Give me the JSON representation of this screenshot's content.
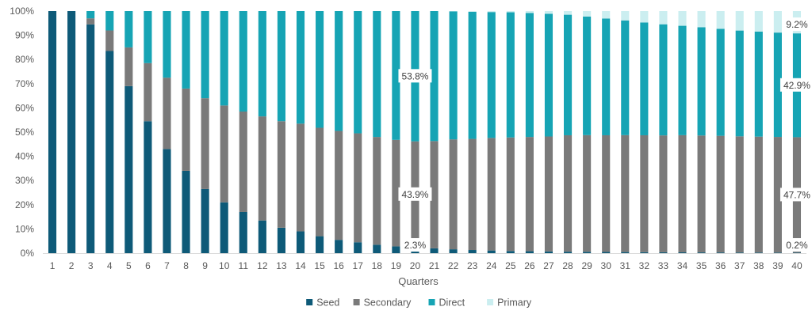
{
  "chart_data": {
    "type": "bar",
    "stacked": "percent",
    "categories": [
      "1",
      "2",
      "3",
      "4",
      "5",
      "6",
      "7",
      "8",
      "9",
      "10",
      "11",
      "12",
      "13",
      "14",
      "15",
      "16",
      "17",
      "18",
      "19",
      "20",
      "21",
      "22",
      "23",
      "24",
      "25",
      "26",
      "27",
      "28",
      "29",
      "30",
      "31",
      "32",
      "33",
      "34",
      "35",
      "36",
      "37",
      "38",
      "39",
      "40"
    ],
    "xlabel": "Quarters",
    "ylabel": "",
    "ylim": [
      0,
      100
    ],
    "y_ticks": [
      "0%",
      "10%",
      "20%",
      "30%",
      "40%",
      "50%",
      "60%",
      "70%",
      "80%",
      "90%",
      "100%"
    ],
    "grid": false,
    "legend_position": "bottom",
    "series": [
      {
        "name": "Seed",
        "color": "#0e5a78",
        "values": [
          100,
          100,
          94.5,
          83.5,
          69,
          54.5,
          43,
          34,
          26.5,
          21,
          17,
          13.5,
          10.5,
          9,
          7,
          5.5,
          4.5,
          3.5,
          2.8,
          2.3,
          2,
          1.6,
          1.3,
          1.1,
          0.9,
          0.8,
          0.7,
          0.6,
          0.55,
          0.5,
          0.45,
          0.4,
          0.35,
          0.33,
          0.3,
          0.28,
          0.26,
          0.24,
          0.22,
          0.2
        ]
      },
      {
        "name": "Secondary",
        "color": "#7a7a7a",
        "values": [
          0,
          0,
          2.5,
          8.5,
          16,
          24,
          29.5,
          34,
          37.5,
          40,
          41.5,
          43,
          44,
          44.5,
          44.8,
          45,
          45,
          44.5,
          44,
          43.9,
          44.3,
          45.4,
          45.9,
          46.5,
          46.9,
          47.2,
          47.5,
          48.1,
          48.2,
          48.2,
          48.3,
          48.3,
          48.3,
          48.4,
          48.3,
          48.2,
          48,
          47.9,
          47.8,
          47.7
        ]
      },
      {
        "name": "Direct",
        "color": "#16a4b4",
        "values": [
          0,
          0,
          3,
          8,
          15,
          21.5,
          27.5,
          32,
          36,
          39,
          41.5,
          43.5,
          45.5,
          46.5,
          48.2,
          49.5,
          50.5,
          52,
          53.2,
          53.8,
          53.7,
          52.9,
          52.5,
          52,
          51.7,
          51.2,
          50.7,
          49.8,
          49,
          48.2,
          47.4,
          46.6,
          45.9,
          45.2,
          44.7,
          44.2,
          43.7,
          43.4,
          43.1,
          42.9
        ]
      },
      {
        "name": "Primary",
        "color": "#cbeef0",
        "values": [
          0,
          0,
          0,
          0,
          0,
          0,
          0,
          0,
          0,
          0,
          0,
          0,
          0,
          0,
          0,
          0,
          0,
          0,
          0,
          0,
          0,
          0.1,
          0.3,
          0.4,
          0.5,
          0.8,
          1.1,
          1.5,
          2.25,
          3.1,
          3.85,
          4.7,
          5.45,
          6.07,
          6.7,
          7.32,
          8.04,
          8.46,
          8.88,
          9.2
        ]
      }
    ],
    "data_labels": [
      {
        "category": "20",
        "series": "Seed",
        "text": "2.3%"
      },
      {
        "category": "20",
        "series": "Secondary",
        "text": "43.9%"
      },
      {
        "category": "20",
        "series": "Direct",
        "text": "53.8%"
      },
      {
        "category": "40",
        "series": "Seed",
        "text": "0.2%"
      },
      {
        "category": "40",
        "series": "Secondary",
        "text": "47.7%"
      },
      {
        "category": "40",
        "series": "Direct",
        "text": "42.9%"
      },
      {
        "category": "40",
        "series": "Primary",
        "text": "9.2%"
      }
    ]
  }
}
